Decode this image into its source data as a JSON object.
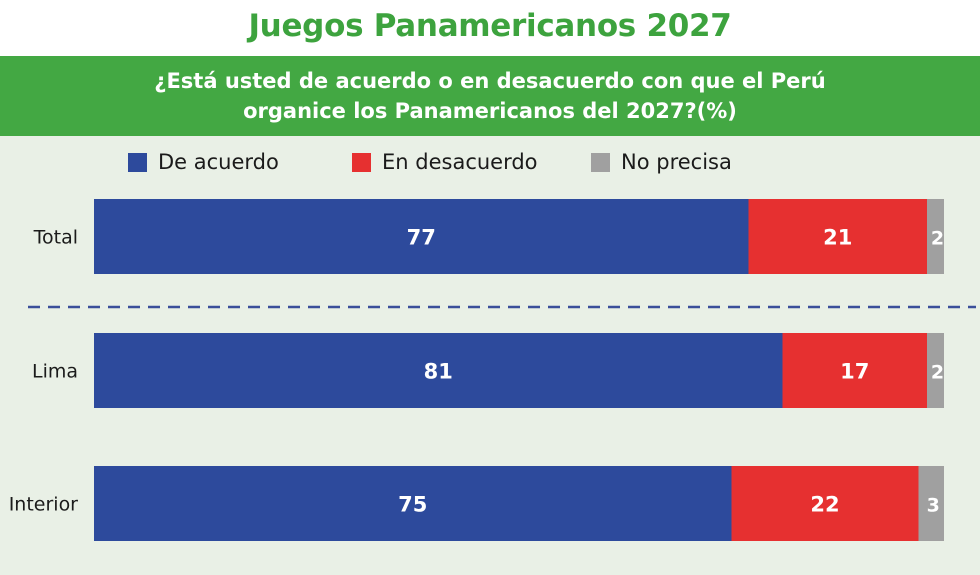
{
  "title": "Juegos Panamericanos 2027",
  "question_line1": "¿Está usted de acuerdo o en desacuerdo con que el Perú",
  "question_line2": "organice los Panamericanos del 2027?(%)",
  "colors": {
    "title": "#3da33e",
    "banner": "#43a843",
    "background_panel": "#e9f0e6",
    "de_acuerdo": "#2d4a9c",
    "en_desacuerdo": "#e63030",
    "no_precisa": "#a0a0a0",
    "separator": "#3b4f9a"
  },
  "legend": [
    {
      "label": "De acuerdo",
      "color": "#2d4a9c"
    },
    {
      "label": "En desacuerdo",
      "color": "#e63030"
    },
    {
      "label": "No precisa",
      "color": "#a0a0a0"
    }
  ],
  "chart_data": {
    "type": "bar",
    "orientation": "horizontal",
    "stacked": true,
    "categories": [
      "Total",
      "Lima",
      "Interior"
    ],
    "series": [
      {
        "name": "De acuerdo",
        "values": [
          77,
          81,
          75
        ]
      },
      {
        "name": "En desacuerdo",
        "values": [
          21,
          17,
          22
        ]
      },
      {
        "name": "No precisa",
        "values": [
          2,
          2,
          3
        ]
      }
    ],
    "xlim": [
      0,
      100
    ],
    "grid": false,
    "legend_position": "top",
    "separator_after_category": "Total"
  }
}
